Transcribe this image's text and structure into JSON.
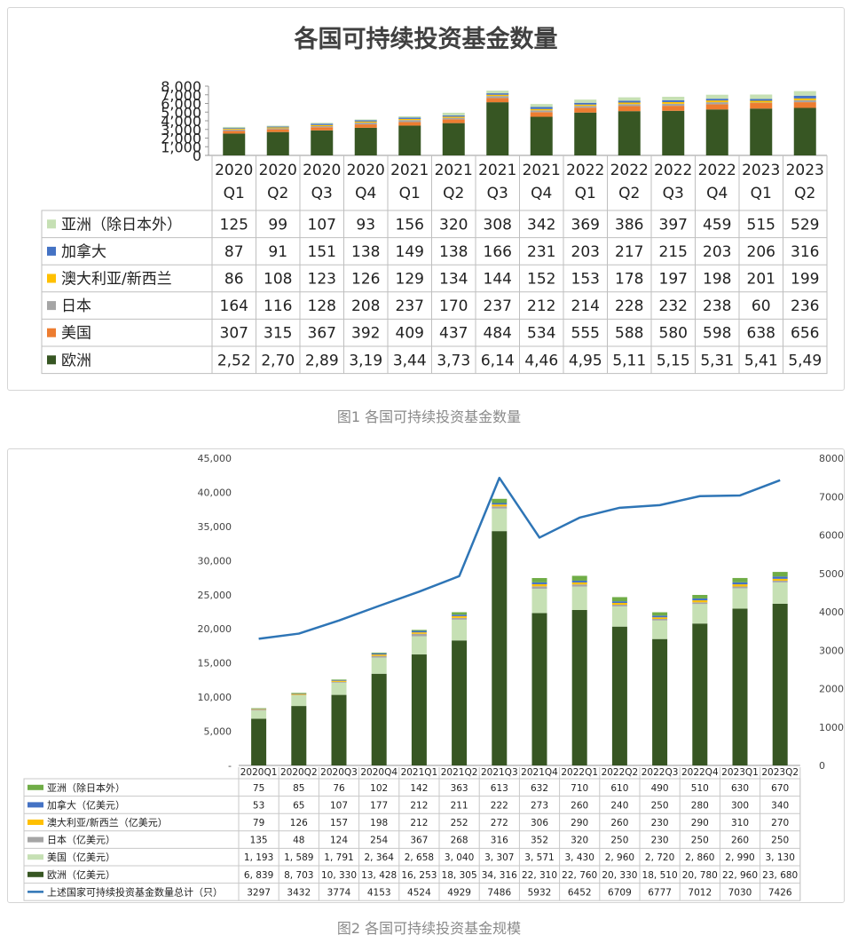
{
  "captions": {
    "fig1": "图1 各国可持续投资基金数量",
    "fig2": "图2 各国可持续投资基金规模"
  },
  "chart_data": [
    {
      "type": "bar",
      "stacked": true,
      "title": "各国可持续投资基金数量",
      "categories": [
        "2020\nQ1",
        "2020\nQ2",
        "2020\nQ3",
        "2020\nQ4",
        "2021\nQ1",
        "2021\nQ2",
        "2021\nQ3",
        "2021\nQ4",
        "2022\nQ1",
        "2022\nQ2",
        "2022\nQ3",
        "2022\nQ4",
        "2023\nQ1",
        "2023\nQ2"
      ],
      "y_ticks": [
        "8,000",
        "7,000",
        "6,000",
        "5,000",
        "4,000",
        "3,000",
        "2,000",
        "1,000",
        "0"
      ],
      "ylim": [
        0,
        8000
      ],
      "series": [
        {
          "name": "亚洲（除日本外）",
          "color": "#c6e0b4",
          "values": [
            125,
            99,
            107,
            93,
            156,
            320,
            308,
            342,
            369,
            386,
            397,
            459,
            515,
            529
          ],
          "labels": [
            "125",
            "99",
            "107",
            "93",
            "156",
            "320",
            "308",
            "342",
            "369",
            "386",
            "397",
            "459",
            "515",
            "529"
          ]
        },
        {
          "name": "加拿大",
          "color": "#4472c4",
          "values": [
            87,
            91,
            151,
            138,
            149,
            138,
            166,
            231,
            203,
            217,
            215,
            203,
            206,
            316
          ],
          "labels": [
            "87",
            "91",
            "151",
            "138",
            "149",
            "138",
            "166",
            "231",
            "203",
            "217",
            "215",
            "203",
            "206",
            "316"
          ]
        },
        {
          "name": "澳大利亚/新西兰",
          "color": "#ffc000",
          "values": [
            86,
            108,
            123,
            126,
            129,
            134,
            144,
            152,
            153,
            178,
            197,
            198,
            201,
            199
          ],
          "labels": [
            "86",
            "108",
            "123",
            "126",
            "129",
            "134",
            "144",
            "152",
            "153",
            "178",
            "197",
            "198",
            "201",
            "199"
          ]
        },
        {
          "name": "日本",
          "color": "#a5a5a5",
          "values": [
            164,
            116,
            128,
            208,
            237,
            170,
            237,
            212,
            214,
            228,
            232,
            238,
            60,
            236
          ],
          "labels": [
            "164",
            "116",
            "128",
            "208",
            "237",
            "170",
            "237",
            "212",
            "214",
            "228",
            "232",
            "238",
            "60",
            "236"
          ]
        },
        {
          "name": "美国",
          "color": "#ed7d31",
          "values": [
            307,
            315,
            367,
            392,
            409,
            437,
            484,
            534,
            555,
            588,
            580,
            598,
            638,
            656
          ],
          "labels": [
            "307",
            "315",
            "367",
            "392",
            "409",
            "437",
            "484",
            "534",
            "555",
            "588",
            "580",
            "598",
            "638",
            "656"
          ]
        },
        {
          "name": "欧洲",
          "color": "#375623",
          "values": [
            2520,
            2700,
            2890,
            3190,
            3440,
            3730,
            6140,
            4460,
            4950,
            5110,
            5150,
            5310,
            5410,
            5490
          ],
          "labels": [
            "2,52",
            "2,70",
            "2,89",
            "3,19",
            "3,44",
            "3,73",
            "6,14",
            "4,46",
            "4,95",
            "5,11",
            "5,15",
            "5,31",
            "5,41",
            "5,49"
          ]
        }
      ]
    },
    {
      "type": "bar",
      "stacked": true,
      "title": "",
      "categories": [
        "2020Q1",
        "2020Q2",
        "2020Q3",
        "2020Q4",
        "2021Q1",
        "2021Q2",
        "2021Q3",
        "2021Q4",
        "2022Q1",
        "2022Q2",
        "2022Q3",
        "2022Q4",
        "2023Q1",
        "2023Q2"
      ],
      "y_ticks_left": [
        "45,000",
        "40,000",
        "35,000",
        "30,000",
        "25,000",
        "20,000",
        "15,000",
        "10,000",
        "5,000",
        "-"
      ],
      "ylim_left": [
        0,
        45000
      ],
      "y_ticks_right": [
        "8000",
        "7000",
        "6000",
        "5000",
        "4000",
        "3000",
        "2000",
        "1000",
        "0"
      ],
      "ylim_right": [
        0,
        8000
      ],
      "series": [
        {
          "name": "亚洲（除日本外）",
          "color": "#70ad47",
          "values": [
            75,
            85,
            76,
            102,
            142,
            363,
            613,
            632,
            710,
            610,
            490,
            510,
            630,
            670
          ],
          "labels": [
            "75",
            "85",
            "76",
            "102",
            "142",
            "363",
            "613",
            "632",
            "710",
            "610",
            "490",
            "510",
            "630",
            "670"
          ]
        },
        {
          "name": "加拿大（亿美元）",
          "color": "#4472c4",
          "values": [
            53,
            65,
            107,
            177,
            212,
            211,
            222,
            273,
            260,
            240,
            250,
            280,
            300,
            340
          ],
          "labels": [
            "53",
            "65",
            "107",
            "177",
            "212",
            "211",
            "222",
            "273",
            "260",
            "240",
            "250",
            "280",
            "300",
            "340"
          ]
        },
        {
          "name": "澳大利亚/新西兰（亿美元）",
          "color": "#ffc000",
          "values": [
            79,
            126,
            157,
            198,
            212,
            252,
            272,
            306,
            290,
            260,
            230,
            290,
            310,
            270
          ],
          "labels": [
            "79",
            "126",
            "157",
            "198",
            "212",
            "252",
            "272",
            "306",
            "290",
            "260",
            "230",
            "290",
            "310",
            "270"
          ]
        },
        {
          "name": "日本（亿美元）",
          "color": "#a5a5a5",
          "values": [
            135,
            48,
            124,
            254,
            367,
            268,
            316,
            352,
            320,
            250,
            230,
            250,
            260,
            250
          ],
          "labels": [
            "135",
            "48",
            "124",
            "254",
            "367",
            "268",
            "316",
            "352",
            "320",
            "250",
            "230",
            "250",
            "260",
            "250"
          ]
        },
        {
          "name": "美国（亿美元）",
          "color": "#c6e0b4",
          "values": [
            1193,
            1589,
            1791,
            2364,
            2658,
            3040,
            3307,
            3571,
            3430,
            2960,
            2720,
            2860,
            2990,
            3130
          ],
          "labels": [
            "1, 193",
            "1, 589",
            "1, 791",
            "2, 364",
            "2, 658",
            "3, 040",
            "3, 307",
            "3, 571",
            "3, 430",
            "2, 960",
            "2, 720",
            "2, 860",
            "2, 990",
            "3, 130"
          ]
        },
        {
          "name": "欧洲（亿美元）",
          "color": "#375623",
          "values": [
            6839,
            8703,
            10330,
            13428,
            16253,
            18305,
            34316,
            22310,
            22760,
            20330,
            18510,
            20780,
            22960,
            23680
          ],
          "labels": [
            "6, 839",
            "8, 703",
            "10, 330",
            "13, 428",
            "16, 253",
            "18, 305",
            "34, 316",
            "22, 310",
            "22, 760",
            "20, 330",
            "18, 510",
            "20, 780",
            "22, 960",
            "23, 680"
          ]
        }
      ],
      "line_series": {
        "name": "上述国家可持续投资基金数量总计（只）",
        "color": "#2e75b6",
        "axis": "right",
        "values": [
          3297,
          3432,
          3774,
          4153,
          4524,
          4929,
          7486,
          5932,
          6452,
          6709,
          6777,
          7012,
          7030,
          7426
        ],
        "labels": [
          "3297",
          "3432",
          "3774",
          "4153",
          "4524",
          "4929",
          "7486",
          "5932",
          "6452",
          "6709",
          "6777",
          "7012",
          "7030",
          "7426"
        ]
      }
    }
  ]
}
